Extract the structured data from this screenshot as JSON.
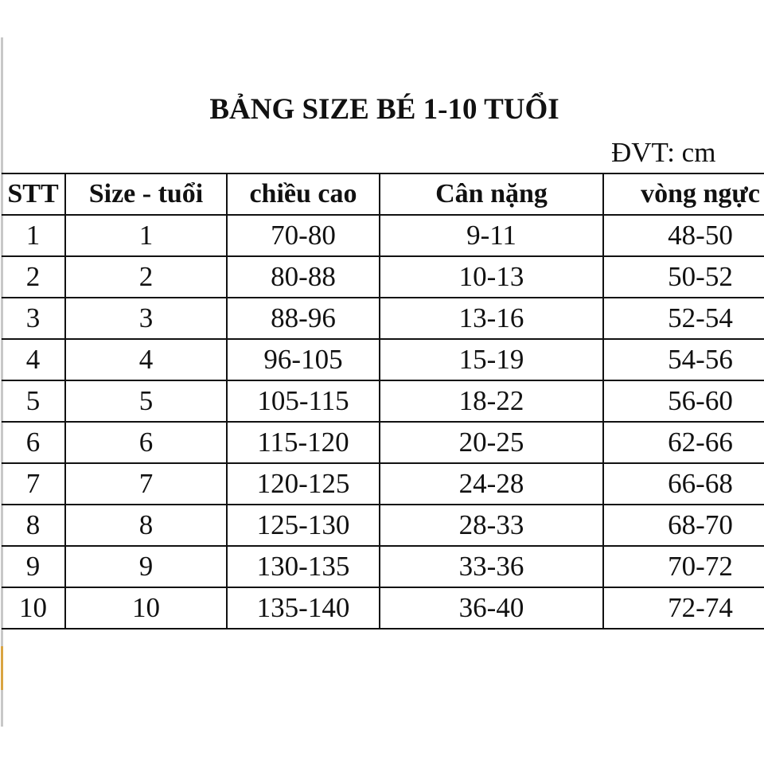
{
  "title": "BẢNG SIZE BÉ 1-10 TUỔI",
  "unit": "ĐVT: cm",
  "colors": {
    "text": "#111111",
    "left_edge": "#c8c8c8",
    "edge_mark": "#d9a441"
  },
  "headers": [
    "STT",
    "Size - tuổi",
    "chiều cao",
    "Cân nặng",
    "vòng ngực"
  ],
  "rows": [
    [
      "1",
      "1",
      "70-80",
      "9-11",
      "48-50"
    ],
    [
      "2",
      "2",
      "80-88",
      "10-13",
      "50-52"
    ],
    [
      "3",
      "3",
      "88-96",
      "13-16",
      "52-54"
    ],
    [
      "4",
      "4",
      "96-105",
      "15-19",
      "54-56"
    ],
    [
      "5",
      "5",
      "105-115",
      "18-22",
      "56-60"
    ],
    [
      "6",
      "6",
      "115-120",
      "20-25",
      "62-66"
    ],
    [
      "7",
      "7",
      "120-125",
      "24-28",
      "66-68"
    ],
    [
      "8",
      "8",
      "125-130",
      "28-33",
      "68-70"
    ],
    [
      "9",
      "9",
      "130-135",
      "33-36",
      "70-72"
    ],
    [
      "10",
      "10",
      "135-140",
      "36-40",
      "72-74"
    ]
  ]
}
